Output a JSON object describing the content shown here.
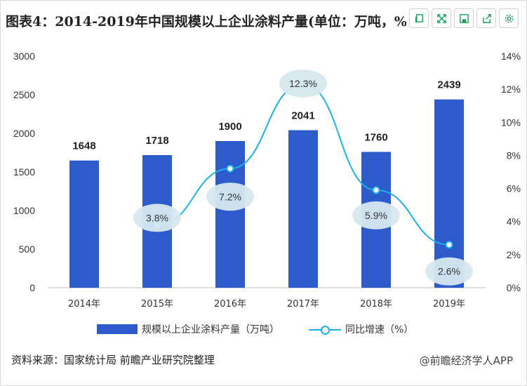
{
  "title": "图表4：2014-2019年中国规模以上企业涂料产量(单位：万吨，%)",
  "toolbar": [
    {
      "name": "copy-icon",
      "glyph": "⧉"
    },
    {
      "name": "expand-icon",
      "glyph": "⤢"
    },
    {
      "name": "save-icon",
      "glyph": "▣"
    },
    {
      "name": "share-icon",
      "glyph": "↗"
    },
    {
      "name": "settings-icon",
      "glyph": "⚙"
    }
  ],
  "chart_data": {
    "type": "bar",
    "categories": [
      "2014年",
      "2015年",
      "2016年",
      "2017年",
      "2018年",
      "2019年"
    ],
    "series": [
      {
        "name": "规模以上企业涂料产量（万吨）",
        "type": "bar",
        "axis": "left",
        "values": [
          1648,
          1718,
          1900,
          2041,
          1760,
          2439
        ],
        "labels": [
          "1648",
          "1718",
          "1900",
          "2041",
          "1760",
          "2439"
        ]
      },
      {
        "name": "同比增速（%）",
        "type": "line",
        "axis": "right",
        "values": [
          null,
          3.8,
          7.2,
          12.3,
          5.9,
          2.6
        ],
        "labels": [
          "",
          "3.8%",
          "7.2%",
          "12.3%",
          "5.9%",
          "2.6%"
        ]
      }
    ],
    "left_axis": {
      "ylim": [
        0,
        3000
      ],
      "ticks": [
        "0",
        "500",
        "1000",
        "1500",
        "2000",
        "2500",
        "3000"
      ]
    },
    "right_axis": {
      "ylim": [
        0,
        14
      ],
      "ticks": [
        "0%",
        "2%",
        "4%",
        "6%",
        "8%",
        "10%",
        "12%",
        "14%"
      ]
    },
    "grid": false,
    "legend_position": "bottom",
    "colors": {
      "bar": "#2e5bcc",
      "line": "#1fb0e8",
      "bubble": "#d6e8ef"
    }
  },
  "source": "资料来源：国家统计局 前瞻产业研究院整理",
  "watermark": "@前瞻经济学人APP"
}
